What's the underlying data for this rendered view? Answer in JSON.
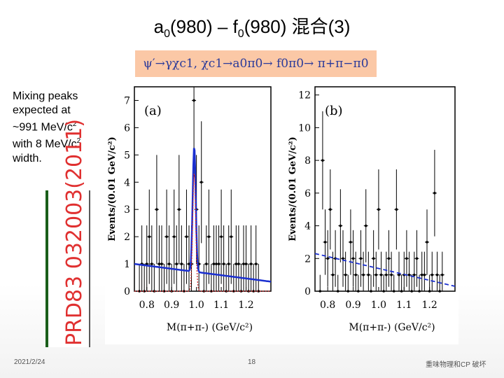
{
  "slide": {
    "title_main": "a",
    "title_sub0": "0",
    "title_part2": "(980) – f",
    "title_sub1": "0",
    "title_part3": "(980) 混合(3)",
    "formula": "ψ′→γχc1, χc1→a0π0→ f0π0→ π+π−π0",
    "side_text_lines": [
      "Mixing peaks",
      "expected at",
      "~991 MeV/c",
      "with 8 MeV/c",
      "width."
    ],
    "side_sup": "2",
    "reference": "PRD83 032003(2011)",
    "footer_date": "2021/2/24",
    "footer_page": "18",
    "footer_right": "重味物理和CP 破坏"
  },
  "chart_data": [
    {
      "type": "scatter",
      "panel_label": "(a)",
      "ylabel": "Events/(0.01 GeV/c²)",
      "xlabel": "M(π+π-) (GeV/c²)",
      "xlim": [
        0.75,
        1.3
      ],
      "ylim": [
        0,
        7.5
      ],
      "xticks": [
        "0.8",
        "0.9",
        "1.0",
        "1.1",
        "1.2"
      ],
      "yticks": [
        "0",
        "1",
        "2",
        "3",
        "4",
        "5",
        "6",
        "7"
      ],
      "points": [
        [
          0.77,
          0
        ],
        [
          0.78,
          1
        ],
        [
          0.79,
          0
        ],
        [
          0.8,
          1
        ],
        [
          0.81,
          2
        ],
        [
          0.82,
          1
        ],
        [
          0.83,
          0
        ],
        [
          0.84,
          3
        ],
        [
          0.85,
          1
        ],
        [
          0.86,
          1
        ],
        [
          0.87,
          0
        ],
        [
          0.88,
          2
        ],
        [
          0.89,
          1
        ],
        [
          0.9,
          0
        ],
        [
          0.91,
          2
        ],
        [
          0.92,
          1
        ],
        [
          0.93,
          3
        ],
        [
          0.94,
          1
        ],
        [
          0.95,
          0
        ],
        [
          0.96,
          2
        ],
        [
          0.97,
          1
        ],
        [
          0.98,
          1
        ],
        [
          0.99,
          7
        ],
        [
          1.0,
          3
        ],
        [
          1.01,
          1
        ],
        [
          1.02,
          4
        ],
        [
          1.03,
          0
        ],
        [
          1.04,
          1
        ],
        [
          1.05,
          2
        ],
        [
          1.06,
          0
        ],
        [
          1.07,
          1
        ],
        [
          1.08,
          1
        ],
        [
          1.09,
          1
        ],
        [
          1.1,
          2
        ],
        [
          1.11,
          1
        ],
        [
          1.12,
          0
        ],
        [
          1.13,
          1
        ],
        [
          1.14,
          2
        ],
        [
          1.15,
          0
        ],
        [
          1.16,
          1
        ],
        [
          1.17,
          1
        ],
        [
          1.18,
          0
        ],
        [
          1.19,
          1
        ],
        [
          1.2,
          1
        ],
        [
          1.21,
          0
        ],
        [
          1.22,
          1
        ],
        [
          1.23,
          0
        ],
        [
          1.24,
          1
        ],
        [
          1.25,
          0
        ]
      ],
      "fit_peak_position": 0.991,
      "fit_peak_height": 4.6,
      "fit_background": [
        1.0,
        0.35
      ]
    },
    {
      "type": "scatter",
      "panel_label": "(b)",
      "ylabel": "Events/(0.01 GeV/c²)",
      "xlabel": "M(π+π-) (GeV/c²)",
      "xlim": [
        0.75,
        1.3
      ],
      "ylim": [
        0,
        12.5
      ],
      "xticks": [
        "0.8",
        "0.9",
        "1.0",
        "1.1",
        "1.2"
      ],
      "yticks": [
        "0",
        "2",
        "4",
        "6",
        "8",
        "10",
        "12"
      ],
      "points": [
        [
          0.77,
          0
        ],
        [
          0.78,
          8
        ],
        [
          0.79,
          3
        ],
        [
          0.8,
          2
        ],
        [
          0.81,
          5
        ],
        [
          0.82,
          1
        ],
        [
          0.83,
          2
        ],
        [
          0.84,
          0
        ],
        [
          0.85,
          4
        ],
        [
          0.86,
          2
        ],
        [
          0.87,
          1
        ],
        [
          0.88,
          0
        ],
        [
          0.89,
          3
        ],
        [
          0.9,
          2
        ],
        [
          0.91,
          1
        ],
        [
          0.92,
          0
        ],
        [
          0.93,
          2
        ],
        [
          0.94,
          1
        ],
        [
          0.95,
          4
        ],
        [
          0.96,
          1
        ],
        [
          0.97,
          0
        ],
        [
          0.98,
          2
        ],
        [
          0.99,
          1
        ],
        [
          1.0,
          5
        ],
        [
          1.01,
          1
        ],
        [
          1.02,
          0
        ],
        [
          1.03,
          1
        ],
        [
          1.04,
          2
        ],
        [
          1.05,
          1
        ],
        [
          1.06,
          0
        ],
        [
          1.07,
          5
        ],
        [
          1.08,
          1
        ],
        [
          1.09,
          0
        ],
        [
          1.1,
          1
        ],
        [
          1.11,
          2
        ],
        [
          1.12,
          1
        ],
        [
          1.13,
          0
        ],
        [
          1.14,
          1
        ],
        [
          1.15,
          2
        ],
        [
          1.16,
          0
        ],
        [
          1.17,
          1
        ],
        [
          1.18,
          1
        ],
        [
          1.19,
          3
        ],
        [
          1.2,
          0
        ],
        [
          1.21,
          1
        ],
        [
          1.22,
          6
        ],
        [
          1.23,
          1
        ],
        [
          1.24,
          0
        ],
        [
          1.25,
          1
        ]
      ],
      "fit_background": [
        2.3,
        0.3
      ]
    }
  ]
}
